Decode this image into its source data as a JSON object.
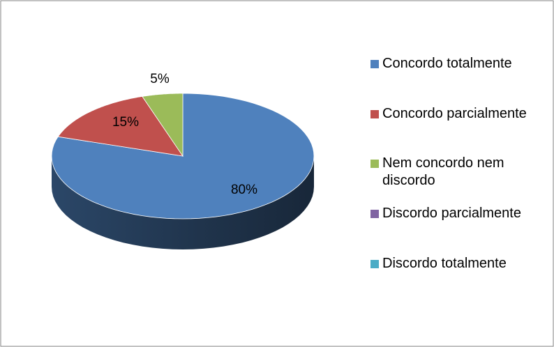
{
  "chart_data": {
    "type": "pie",
    "categories": [
      "Concordo totalmente",
      "Concordo parcialmente",
      "Nem concordo nem discordo",
      "Discordo parcialmente",
      "Discordo totalmente"
    ],
    "values": [
      80,
      15,
      5,
      0,
      0
    ],
    "value_labels": [
      "80%",
      "15%",
      "5%",
      null,
      null
    ],
    "colors": [
      "#4f81bd",
      "#c0504d",
      "#9bbb59",
      "#8064a2",
      "#4bacc6"
    ],
    "legend": "right"
  }
}
